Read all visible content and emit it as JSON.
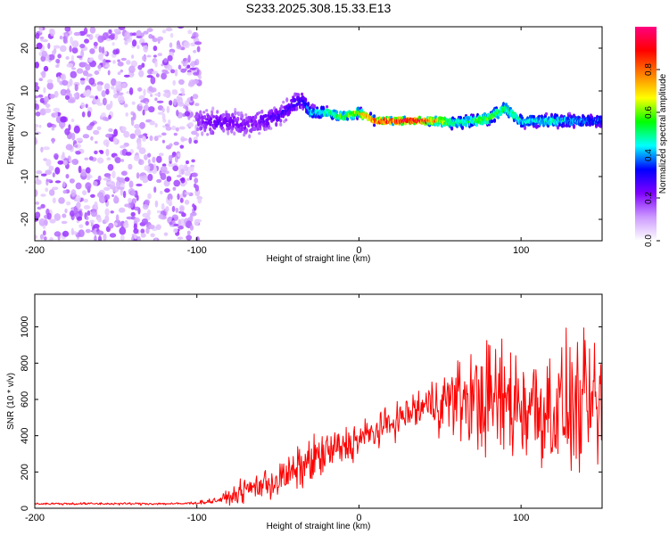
{
  "figure": {
    "title": "S233.2025.308.15.33.E13"
  },
  "chart_data": [
    {
      "type": "heatmap",
      "name": "spectrogram",
      "xlabel": "Height of straight line (km)",
      "ylabel": "Frequency (Hz)",
      "xlim": [
        -200,
        150
      ],
      "ylim": [
        -25,
        25
      ],
      "xticks": [
        -200,
        -100,
        0,
        100
      ],
      "yticks": [
        -20,
        -10,
        0,
        10,
        20
      ],
      "noise_region": {
        "x_range": [
          -200,
          -100
        ],
        "amplitude_range": [
          0.05,
          0.2
        ]
      },
      "signal_ridge": {
        "x": [
          -100,
          -90,
          -80,
          -70,
          -60,
          -50,
          -40,
          -35,
          -30,
          -20,
          -10,
          0,
          10,
          20,
          30,
          40,
          50,
          60,
          70,
          80,
          90,
          100,
          110,
          120,
          130,
          140,
          150
        ],
        "frequency": [
          3,
          2.5,
          3,
          2,
          3,
          4,
          7,
          8,
          5,
          5,
          4,
          5,
          3,
          3,
          3,
          3,
          3,
          2.5,
          3,
          3.5,
          6,
          3,
          3,
          3,
          3,
          3,
          3
        ],
        "peak_amplitude": [
          0.2,
          0.25,
          0.25,
          0.22,
          0.25,
          0.28,
          0.3,
          0.3,
          0.45,
          0.55,
          0.6,
          0.7,
          0.85,
          0.95,
          0.98,
          0.95,
          0.7,
          0.5,
          0.55,
          0.6,
          0.55,
          0.5,
          0.45,
          0.5,
          0.45,
          0.4,
          0.4
        ],
        "width": [
          4,
          4,
          3.5,
          4,
          3.5,
          3,
          3,
          3,
          2,
          1.5,
          1.5,
          1.5,
          1.2,
          1,
          1,
          1,
          1.5,
          2,
          2,
          2,
          2,
          2,
          2,
          2,
          2,
          2,
          2
        ]
      },
      "colorbar": {
        "label": "Normalized spectral amplitude",
        "range": [
          0,
          1
        ],
        "ticks": [
          0.0,
          0.2,
          0.4,
          0.6,
          0.8
        ],
        "tick_labels": [
          "0.0",
          "0.2",
          "0.4",
          "0.6",
          "0.8"
        ],
        "colors": [
          "#ffffff",
          "#cc99ff",
          "#8000ff",
          "#0000ff",
          "#00ffff",
          "#00ff00",
          "#ffff00",
          "#ff8000",
          "#ff0000",
          "#ff0080"
        ]
      }
    },
    {
      "type": "line",
      "name": "snr",
      "xlabel": "Height of straight line (km)",
      "ylabel": "SNR (10 * v/v)",
      "xlim": [
        -200,
        150
      ],
      "ylim": [
        0,
        1180
      ],
      "xticks": [
        -200,
        -100,
        0,
        100
      ],
      "yticks": [
        0,
        200,
        400,
        600,
        800,
        1000
      ],
      "color": "#ff0000",
      "envelope": {
        "x": [
          -200,
          -110,
          -100,
          -90,
          -80,
          -70,
          -60,
          -50,
          -40,
          -30,
          -20,
          -10,
          0,
          10,
          20,
          30,
          40,
          50,
          60,
          70,
          80,
          90,
          100,
          110,
          120,
          130,
          140,
          150
        ],
        "mean": [
          25,
          25,
          30,
          40,
          60,
          100,
          130,
          150,
          200,
          260,
          300,
          340,
          380,
          420,
          470,
          520,
          560,
          590,
          600,
          600,
          600,
          590,
          580,
          560,
          550,
          540,
          560,
          560
        ],
        "spread": [
          8,
          8,
          10,
          20,
          40,
          80,
          100,
          120,
          130,
          150,
          150,
          130,
          120,
          110,
          100,
          120,
          150,
          200,
          250,
          320,
          380,
          400,
          400,
          400,
          420,
          420,
          400,
          400
        ]
      }
    }
  ]
}
